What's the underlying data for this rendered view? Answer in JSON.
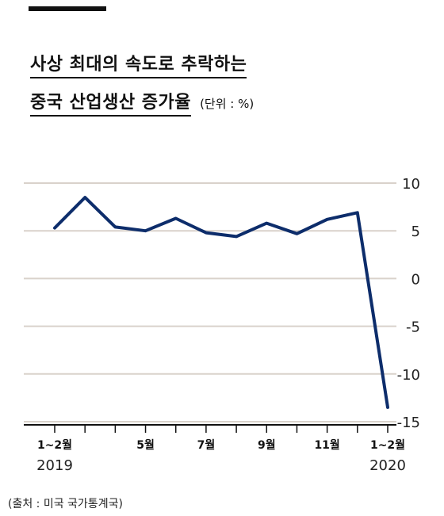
{
  "title_line1": "사상 최대의 속도로 추락하는",
  "title_line2": "중국 산업생산 증가율",
  "unit": "(단위 :   %)",
  "source": "(출처 :   미국   국가통계국)",
  "chart_data": {
    "type": "line",
    "series": [
      {
        "values": [
          5.3,
          8.5,
          5.4,
          5.0,
          6.3,
          4.8,
          4.4,
          5.8,
          4.7,
          6.2,
          6.9,
          -13.5
        ]
      }
    ],
    "x_tick_labels": [
      "1~2월",
      "5월",
      "7월",
      "9월",
      "11월",
      "1~2월"
    ],
    "x_tick_label_indices": [
      0,
      3,
      5,
      7,
      9,
      11
    ],
    "year_labels": [
      "2019",
      "2020"
    ],
    "year_label_indices": [
      0,
      11
    ],
    "y_ticks": [
      10,
      5,
      0,
      -5,
      -10,
      -15
    ],
    "ylim": [
      -15,
      10
    ],
    "grid": true,
    "line_color": "#0d2d6b",
    "grid_color": "#d9d2cb"
  }
}
